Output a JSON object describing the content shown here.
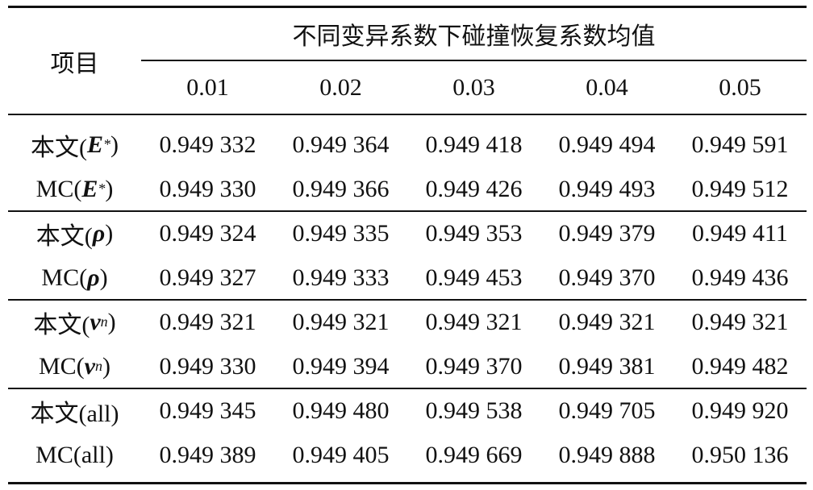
{
  "table": {
    "header": {
      "row_label": "项目",
      "group_title": "不同变异系数下碰撞恢复系数均值",
      "columns": [
        "0.01",
        "0.02",
        "0.03",
        "0.04",
        "0.05"
      ]
    },
    "rows": [
      {
        "label": {
          "text": "本文(",
          "var": "E",
          "sup": "*",
          "close": ")"
        },
        "cells": [
          "0.949 332",
          "0.949 364",
          "0.949 418",
          "0.949 494",
          "0.949 591"
        ]
      },
      {
        "label": {
          "text": "MC(",
          "var": "E",
          "sup": "*",
          "close": ")"
        },
        "cells": [
          "0.949 330",
          "0.949 366",
          "0.949 426",
          "0.949 493",
          "0.949 512"
        ]
      },
      {
        "label": {
          "text": "本文(",
          "var": "ρ",
          "close": ")"
        },
        "cells": [
          "0.949 324",
          "0.949 335",
          "0.949 353",
          "0.949 379",
          "0.949 411"
        ]
      },
      {
        "label": {
          "text": "MC(",
          "var": "ρ",
          "close": ")"
        },
        "cells": [
          "0.949 327",
          "0.949 333",
          "0.949 453",
          "0.949 370",
          "0.949 436"
        ]
      },
      {
        "label": {
          "text": "本文(",
          "var": "v",
          "sub": "n",
          "close": ")"
        },
        "cells": [
          "0.949 321",
          "0.949 321",
          "0.949 321",
          "0.949 321",
          "0.949 321"
        ]
      },
      {
        "label": {
          "text": "MC(",
          "var": "v",
          "sub": "n",
          "close": ")"
        },
        "cells": [
          "0.949 330",
          "0.949 394",
          "0.949 370",
          "0.949 381",
          "0.949 482"
        ]
      },
      {
        "label": {
          "text": "本文(all)"
        },
        "cells": [
          "0.949 345",
          "0.949 480",
          "0.949 538",
          "0.949 705",
          "0.949 920"
        ]
      },
      {
        "label": {
          "text": "MC(all)"
        },
        "cells": [
          "0.949 389",
          "0.949 405",
          "0.949 669",
          "0.949 888",
          "0.950 136"
        ]
      }
    ]
  }
}
